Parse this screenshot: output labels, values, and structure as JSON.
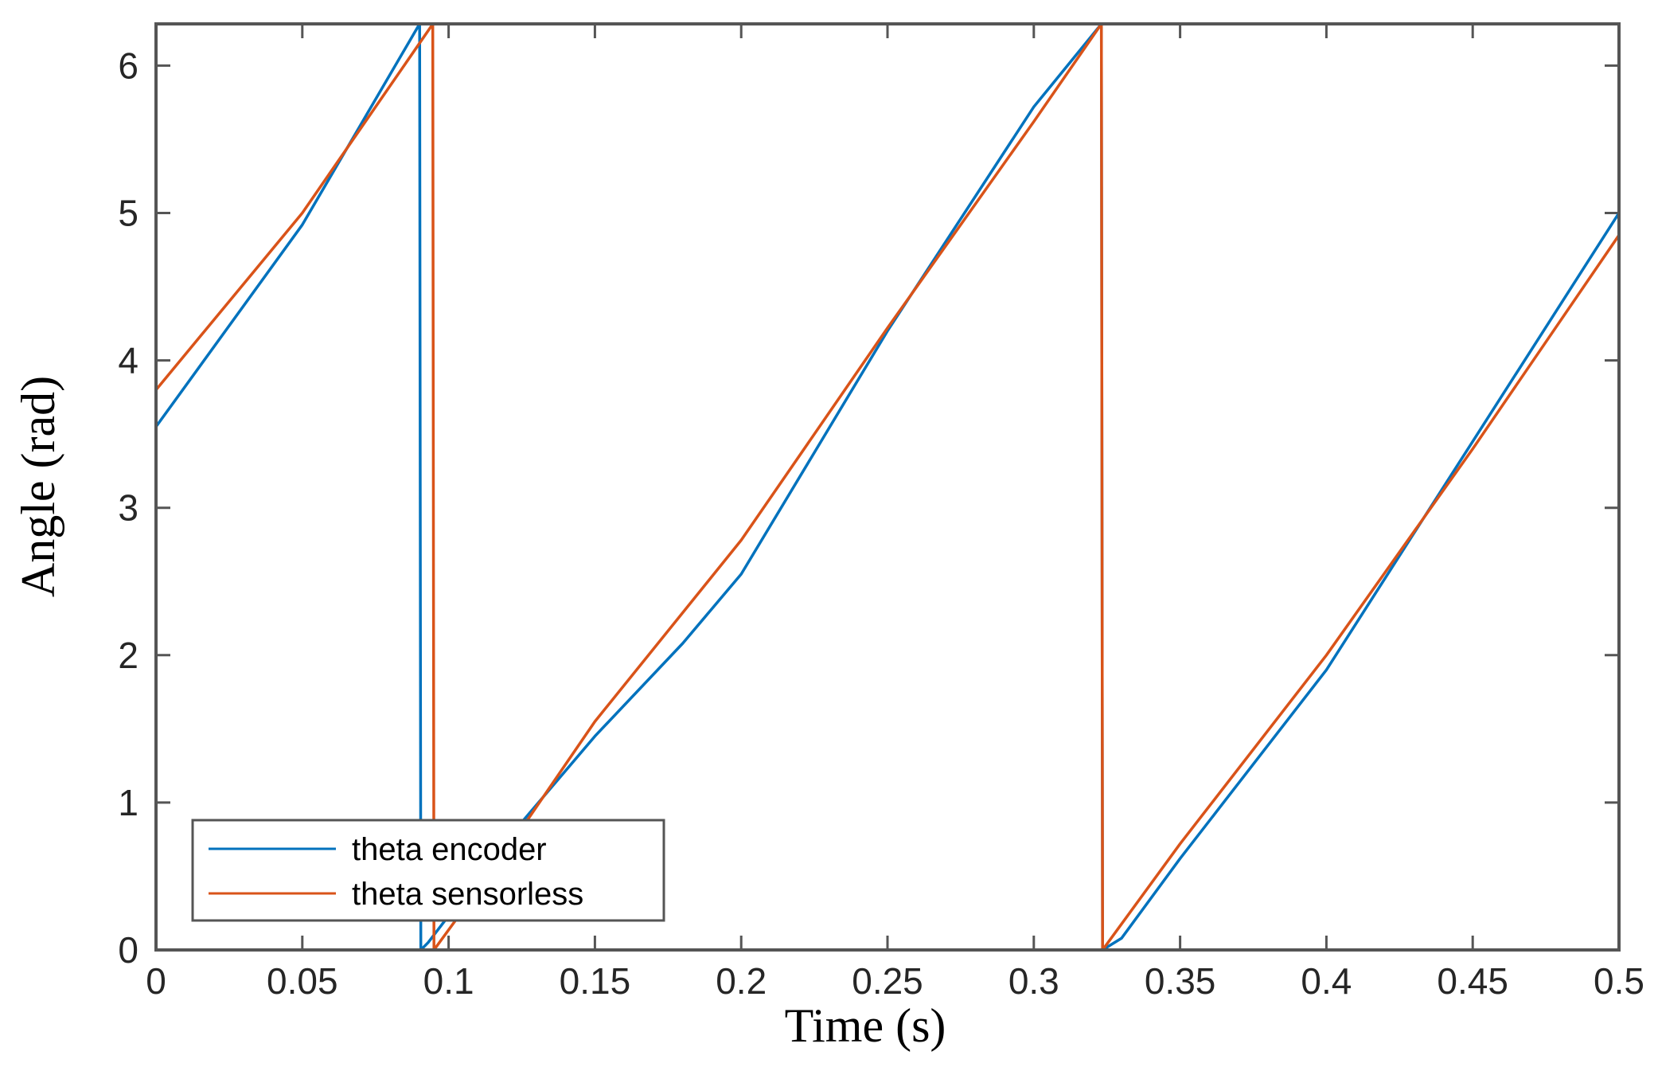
{
  "chart_data": {
    "type": "line",
    "title": "",
    "xlabel": "Time (s)",
    "ylabel": "Angle (rad)",
    "xlim": [
      0,
      0.5
    ],
    "ylim": [
      0,
      6.283
    ],
    "x_ticks": [
      0,
      0.05,
      0.1,
      0.15,
      0.2,
      0.25,
      0.3,
      0.35,
      0.4,
      0.45,
      0.5
    ],
    "x_tick_labels": [
      "0",
      "0.05",
      "0.1",
      "0.15",
      "0.2",
      "0.25",
      "0.3",
      "0.35",
      "0.4",
      "0.45",
      "0.5"
    ],
    "y_ticks": [
      0,
      1,
      2,
      3,
      4,
      5,
      6
    ],
    "y_tick_labels": [
      "0",
      "1",
      "2",
      "3",
      "4",
      "5",
      "6"
    ],
    "grid": false,
    "legend_position": "bottom-left",
    "series": [
      {
        "name": "theta encoder",
        "color": "#0072BD",
        "x": [
          0,
          0.05,
          0.09,
          0.0901,
          0.0905,
          0.093,
          0.12,
          0.15,
          0.18,
          0.2,
          0.25,
          0.3,
          0.323,
          0.3231,
          0.3235,
          0.33,
          0.35,
          0.4,
          0.45,
          0.5
        ],
        "y": [
          3.55,
          4.92,
          6.28,
          6.28,
          0,
          0.05,
          0.75,
          1.45,
          2.08,
          2.55,
          4.2,
          5.72,
          6.28,
          6.28,
          0,
          0.08,
          0.62,
          1.9,
          3.45,
          5.0
        ]
      },
      {
        "name": "theta sensorless",
        "color": "#D95319",
        "x": [
          0,
          0.05,
          0.0945,
          0.0946,
          0.095,
          0.12,
          0.15,
          0.2,
          0.25,
          0.3,
          0.323,
          0.3231,
          0.3235,
          0.35,
          0.4,
          0.45,
          0.5
        ],
        "y": [
          3.8,
          5.0,
          6.28,
          6.28,
          0,
          0.68,
          1.55,
          2.78,
          4.22,
          5.62,
          6.28,
          6.28,
          0,
          0.72,
          2.0,
          3.4,
          4.85
        ]
      }
    ]
  }
}
